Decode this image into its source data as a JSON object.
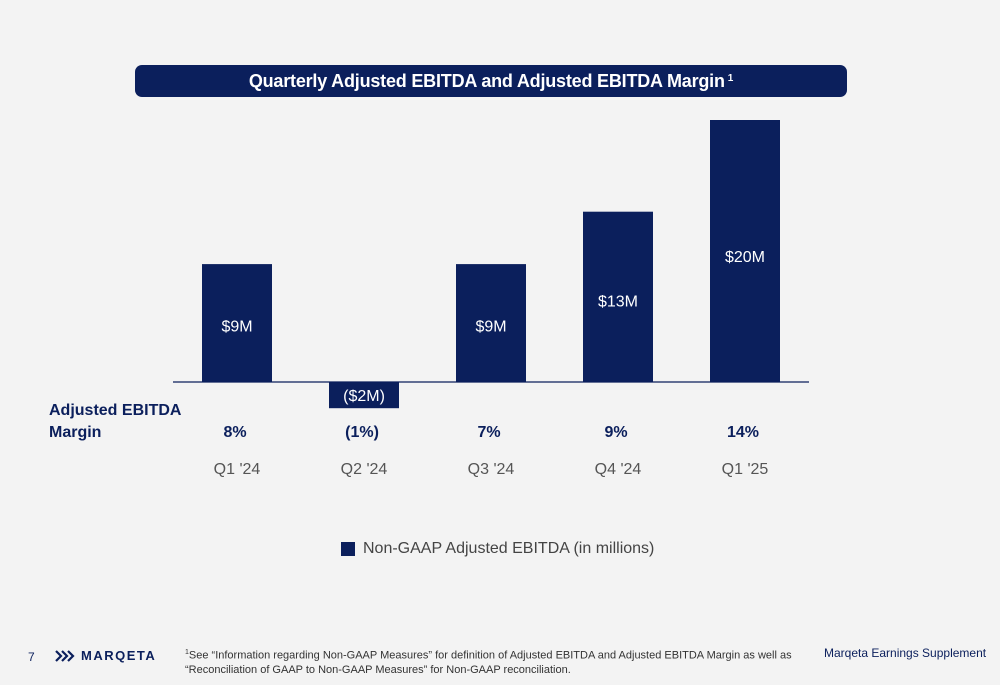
{
  "chart_data": {
    "type": "bar",
    "title": "Quarterly Adjusted EBITDA and Adjusted EBITDA Margin",
    "title_footnote_marker": "1",
    "categories": [
      "Q1 '24",
      "Q2 '24",
      "Q3 '24",
      "Q4 '24",
      "Q1 '25"
    ],
    "values": [
      9,
      -2,
      9,
      13,
      20
    ],
    "value_labels": [
      "$9M",
      "($2M)",
      "$9M",
      "$13M",
      "$20M"
    ],
    "margin_row_title": "Adjusted EBITDA Margin",
    "margin_row_title_lines": [
      "Adjusted EBITDA",
      "Margin"
    ],
    "margins": [
      "8%",
      "(1%)",
      "7%",
      "9%",
      "14%"
    ],
    "legend": [
      "Non-GAAP Adjusted EBITDA (in millions)"
    ],
    "bar_color": "#0b1f5c",
    "ylabel": "",
    "xlabel": ""
  },
  "footer": {
    "page_number": "7",
    "brand": "MARQETA",
    "footnote_marker": "1",
    "footnote_line1": "See “Information regarding Non-GAAP Measures” for definition of Adjusted EBITDA and Adjusted EBITDA Margin as well as",
    "footnote_line2": "“Reconciliation of GAAP to Non-GAAP Measures” for Non-GAAP reconciliation.",
    "document_title": "Marqeta Earnings Supplement"
  }
}
